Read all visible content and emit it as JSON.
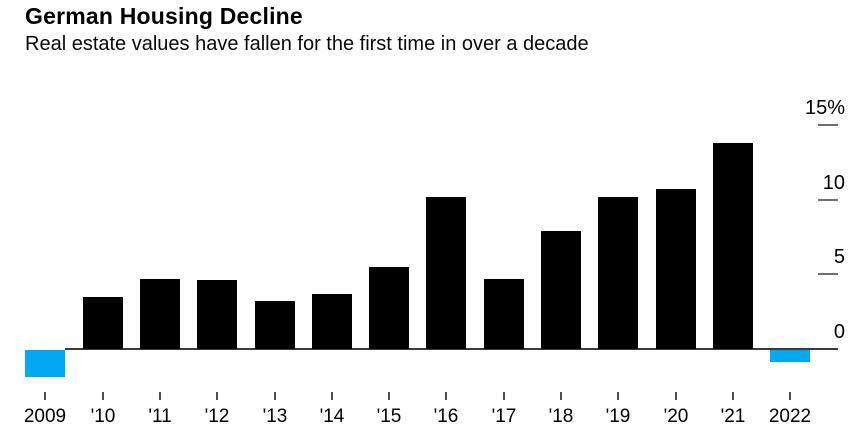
{
  "chart_data": {
    "type": "bar",
    "title": "German Housing Decline",
    "subtitle": "Real estate values have fallen for the first time in over a decade",
    "unit": "%",
    "categories": [
      "2009",
      "'10",
      "'11",
      "'12",
      "'13",
      "'14",
      "'15",
      "'16",
      "'17",
      "'18",
      "'19",
      "'20",
      "'21",
      "2022"
    ],
    "values": [
      -1.8,
      3.5,
      4.7,
      4.6,
      3.2,
      3.7,
      5.5,
      10.2,
      4.7,
      7.9,
      10.2,
      10.7,
      13.8,
      -0.8
    ],
    "y_axis": {
      "side": "right",
      "ticks": [
        {
          "value": 0,
          "label": "0"
        },
        {
          "value": 5,
          "label": "5"
        },
        {
          "value": 10,
          "label": "10"
        },
        {
          "value": 15,
          "label": "15%"
        }
      ],
      "range": [
        -2.5,
        15.8
      ]
    },
    "grid": false,
    "legend": false,
    "colors": {
      "positive": "#000000",
      "negative": "#00a9f0"
    }
  }
}
